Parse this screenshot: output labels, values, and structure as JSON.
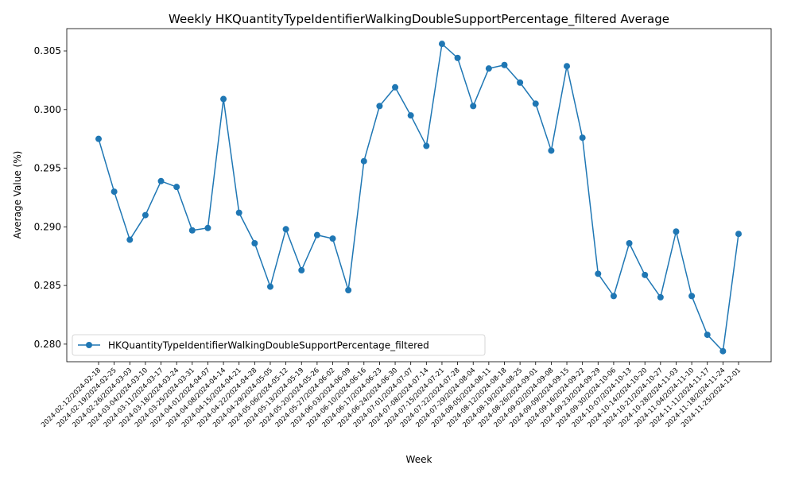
{
  "chart_data": {
    "type": "line",
    "title": "Weekly HKQuantityTypeIdentifierWalkingDoubleSupportPercentage_filtered Average",
    "xlabel": "Week",
    "ylabel": "Average Value (%)",
    "ylim": [
      0.2785,
      0.3069
    ],
    "yticks": [
      "0.280",
      "0.285",
      "0.290",
      "0.295",
      "0.300",
      "0.305"
    ],
    "grid": false,
    "legend_position": "lower left",
    "categories": [
      "2024-02-12/2024-02-18",
      "2024-02-19/2024-02-25",
      "2024-02-26/2024-03-03",
      "2024-03-04/2024-03-10",
      "2024-03-11/2024-03-17",
      "2024-03-18/2024-03-24",
      "2024-03-25/2024-03-31",
      "2024-04-01/2024-04-07",
      "2024-04-08/2024-04-14",
      "2024-04-15/2024-04-21",
      "2024-04-22/2024-04-28",
      "2024-04-29/2024-05-05",
      "2024-05-06/2024-05-12",
      "2024-05-13/2024-05-19",
      "2024-05-20/2024-05-26",
      "2024-05-27/2024-06-02",
      "2024-06-03/2024-06-09",
      "2024-06-10/2024-06-16",
      "2024-06-17/2024-06-23",
      "2024-06-24/2024-06-30",
      "2024-07-01/2024-07-07",
      "2024-07-08/2024-07-14",
      "2024-07-15/2024-07-21",
      "2024-07-22/2024-07-28",
      "2024-07-29/2024-08-04",
      "2024-08-05/2024-08-11",
      "2024-08-12/2024-08-18",
      "2024-08-19/2024-08-25",
      "2024-08-26/2024-09-01",
      "2024-09-02/2024-09-08",
      "2024-09-09/2024-09-15",
      "2024-09-16/2024-09-22",
      "2024-09-23/2024-09-29",
      "2024-09-30/2024-10-06",
      "2024-10-07/2024-10-13",
      "2024-10-14/2024-10-20",
      "2024-10-21/2024-10-27",
      "2024-10-28/2024-11-03",
      "2024-11-04/2024-11-10",
      "2024-11-11/2024-11-17",
      "2024-11-18/2024-11-24",
      "2024-11-25/2024-12-01"
    ],
    "series": [
      {
        "name": "HKQuantityTypeIdentifierWalkingDoubleSupportPercentage_filtered",
        "color": "#1f77b4",
        "marker": "circle",
        "values": [
          0.2975,
          0.293,
          0.2889,
          0.291,
          0.2939,
          0.2934,
          0.2897,
          0.2899,
          0.3009,
          0.2912,
          0.2886,
          0.2849,
          0.2898,
          0.2863,
          0.2893,
          0.289,
          0.2846,
          0.2956,
          0.3003,
          0.3019,
          0.2995,
          0.2969,
          0.3056,
          0.3044,
          0.3003,
          0.3035,
          0.3038,
          0.3023,
          0.3005,
          0.2965,
          0.3037,
          0.2976,
          0.286,
          0.2841,
          0.2886,
          0.2859,
          0.284,
          0.2896,
          0.2841,
          0.2808,
          0.2794,
          0.2894
        ]
      }
    ]
  }
}
